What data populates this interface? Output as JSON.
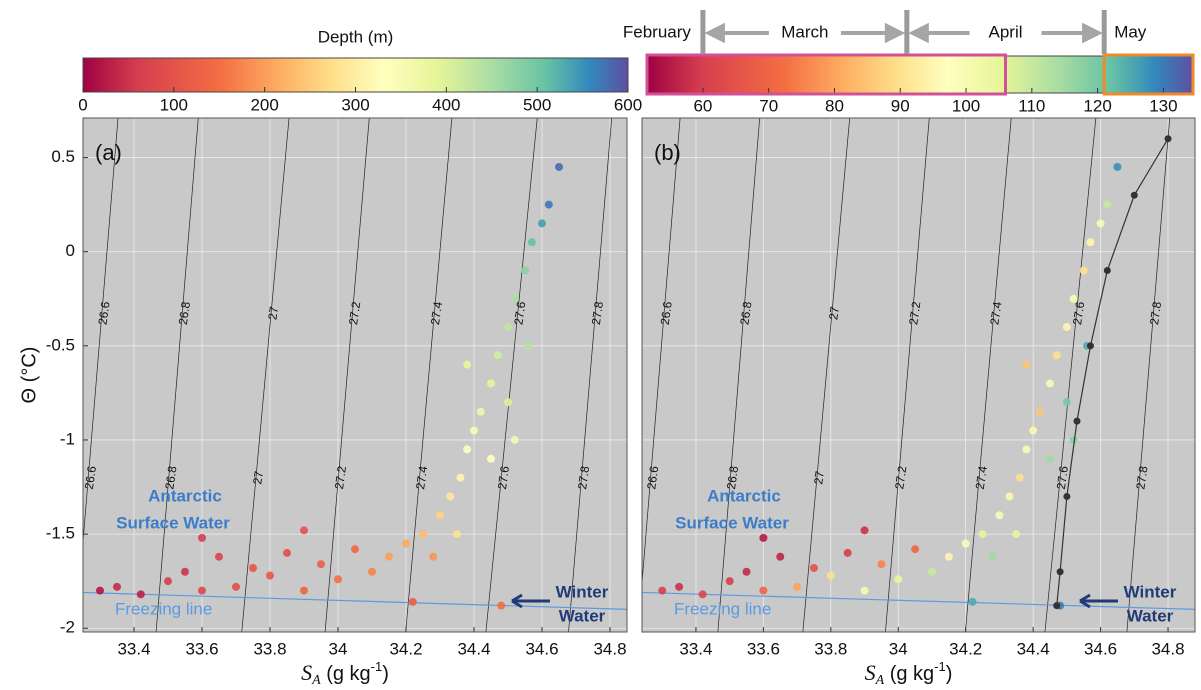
{
  "chart_data": [
    {
      "type": "scatter",
      "panel_label": "(a)",
      "ylabel": "Θ (°C)",
      "xlabel": [
        "S",
        "A",
        " (g kg",
        "-1",
        ")"
      ],
      "xlim": [
        33.25,
        34.85
      ],
      "ylim": [
        -2.02,
        0.71
      ],
      "xticks": [
        33.4,
        33.6,
        33.8,
        34,
        34.2,
        34.4,
        34.6,
        34.8
      ],
      "yticks": [
        -2,
        -1.5,
        -1,
        -0.5,
        0,
        0.5
      ],
      "grid": true,
      "colorbar": {
        "label": "Depth (m)",
        "lim": [
          0,
          600
        ],
        "ticks": [
          0,
          100,
          200,
          300,
          400,
          500,
          600
        ]
      },
      "isopycnals": {
        "sigma": [
          26.6,
          26.8,
          27,
          27.2,
          27.4,
          27.6,
          27.8
        ],
        "s_bottom": [
          33.228,
          33.465,
          33.717,
          33.962,
          34.199,
          34.435,
          34.678
        ],
        "s_top": [
          33.353,
          33.589,
          33.856,
          34.092,
          34.335,
          34.586,
          34.805
        ]
      },
      "freezing_line": {
        "label": "Freezing line",
        "s": [
          33.25,
          34.85
        ],
        "theta": [
          -1.81,
          -1.9
        ]
      },
      "annotations": {
        "water_mass": [
          "Antarctic",
          "Surface Water"
        ],
        "winter": [
          "Winter",
          "Water"
        ]
      },
      "x": [
        33.3,
        33.35,
        33.42,
        33.5,
        33.55,
        33.6,
        33.65,
        33.7,
        33.75,
        33.8,
        33.85,
        33.9,
        33.95,
        34.0,
        34.05,
        34.1,
        34.15,
        34.2,
        34.25,
        34.28,
        34.22,
        34.3,
        34.33,
        34.36,
        34.38,
        34.4,
        34.42,
        34.45,
        34.47,
        34.5,
        34.52,
        34.55,
        34.57,
        34.6,
        34.62,
        34.45,
        34.5,
        34.56,
        34.48,
        33.9,
        33.6,
        34.35,
        34.65,
        34.38,
        34.52
      ],
      "y": [
        -1.8,
        -1.78,
        -1.82,
        -1.75,
        -1.7,
        -1.8,
        -1.62,
        -1.78,
        -1.68,
        -1.72,
        -1.6,
        -1.8,
        -1.66,
        -1.74,
        -1.58,
        -1.7,
        -1.62,
        -1.55,
        -1.5,
        -1.62,
        -1.86,
        -1.4,
        -1.3,
        -1.2,
        -1.05,
        -0.95,
        -0.85,
        -0.7,
        -0.55,
        -0.4,
        -0.25,
        -0.1,
        0.05,
        0.15,
        0.25,
        -1.1,
        -0.8,
        -0.5,
        -1.88,
        -1.48,
        -1.52,
        -1.5,
        0.45,
        -0.6,
        -1.0
      ],
      "c": [
        20,
        40,
        30,
        60,
        50,
        80,
        70,
        90,
        100,
        110,
        90,
        130,
        120,
        150,
        140,
        170,
        200,
        210,
        230,
        190,
        120,
        260,
        290,
        310,
        330,
        350,
        370,
        390,
        410,
        430,
        450,
        480,
        510,
        540,
        570,
        330,
        400,
        440,
        150,
        100,
        60,
        280,
        580,
        380,
        360
      ]
    },
    {
      "type": "scatter",
      "panel_label": "(b)",
      "xlabel": [
        "S",
        "A",
        " (g kg",
        "-1",
        ")"
      ],
      "xlim": [
        33.24,
        34.88
      ],
      "ylim": [
        -2.02,
        0.71
      ],
      "xticks": [
        33.4,
        33.6,
        33.8,
        34,
        34.2,
        34.4,
        34.6,
        34.8
      ],
      "yticks": [
        -2,
        -1.5,
        -1,
        -0.5,
        0,
        0.5
      ],
      "grid": true,
      "colorbar": {
        "lim": [
          51.5,
          134.5
        ],
        "ticks": [
          60,
          70,
          80,
          90,
          100,
          110,
          120,
          130
        ],
        "months": {
          "labels": [
            "February",
            "March",
            "April",
            "May"
          ],
          "boundaries": [
            60,
            91,
            121
          ]
        },
        "boxes": [
          {
            "range": [
              51.5,
              106
            ],
            "color": "#d0509a"
          },
          {
            "range": [
              121,
              134.5
            ],
            "color": "#ee8a2a"
          }
        ]
      },
      "isopycnals": {
        "sigma": [
          26.6,
          26.8,
          27,
          27.2,
          27.4,
          27.6,
          27.8
        ],
        "s_bottom": [
          33.228,
          33.465,
          33.717,
          33.962,
          34.199,
          34.435,
          34.678
        ],
        "s_top": [
          33.353,
          33.589,
          33.856,
          34.092,
          34.335,
          34.586,
          34.805
        ]
      },
      "freezing_line": {
        "label": "Freezing line",
        "s": [
          33.24,
          34.88
        ],
        "theta": [
          -1.81,
          -1.9
        ]
      },
      "annotations": {
        "water_mass": [
          "Antarctic",
          "Surface Water"
        ],
        "winter": [
          "Winter",
          "Water"
        ]
      },
      "x": [
        33.3,
        33.35,
        33.42,
        33.5,
        33.55,
        33.6,
        33.65,
        33.7,
        33.75,
        33.8,
        33.85,
        33.9,
        33.95,
        34.0,
        34.05,
        34.1,
        34.15,
        34.2,
        34.25,
        34.28,
        34.22,
        34.3,
        34.33,
        34.36,
        34.38,
        34.4,
        34.42,
        34.45,
        34.47,
        34.5,
        34.52,
        34.55,
        34.57,
        34.6,
        34.62,
        34.45,
        34.5,
        34.56,
        34.48,
        33.9,
        33.6,
        34.35,
        34.65,
        34.38,
        34.52
      ],
      "y": [
        -1.8,
        -1.78,
        -1.82,
        -1.75,
        -1.7,
        -1.8,
        -1.62,
        -1.78,
        -1.68,
        -1.72,
        -1.6,
        -1.8,
        -1.66,
        -1.74,
        -1.58,
        -1.7,
        -1.62,
        -1.55,
        -1.5,
        -1.62,
        -1.86,
        -1.4,
        -1.3,
        -1.2,
        -1.05,
        -0.95,
        -0.85,
        -0.7,
        -0.55,
        -0.4,
        -0.25,
        -0.1,
        0.05,
        0.15,
        0.25,
        -1.1,
        -0.8,
        -0.5,
        -1.88,
        -1.48,
        -1.52,
        -1.5,
        0.45,
        -0.6,
        -1.0
      ],
      "c": [
        60,
        58,
        62,
        60,
        57,
        70,
        56,
        80,
        65,
        90,
        60,
        100,
        75,
        105,
        70,
        110,
        95,
        100,
        105,
        115,
        125,
        100,
        95,
        90,
        100,
        95,
        85,
        100,
        90,
        95,
        100,
        90,
        95,
        100,
        110,
        115,
        120,
        125,
        130,
        58,
        55,
        105,
        128,
        85,
        118
      ],
      "profile": {
        "color": "#333333",
        "x": [
          34.47,
          34.48,
          34.5,
          34.53,
          34.57,
          34.62,
          34.7,
          34.8
        ],
        "y": [
          -1.88,
          -1.7,
          -1.3,
          -0.9,
          -0.5,
          -0.1,
          0.3,
          0.6
        ]
      }
    }
  ]
}
